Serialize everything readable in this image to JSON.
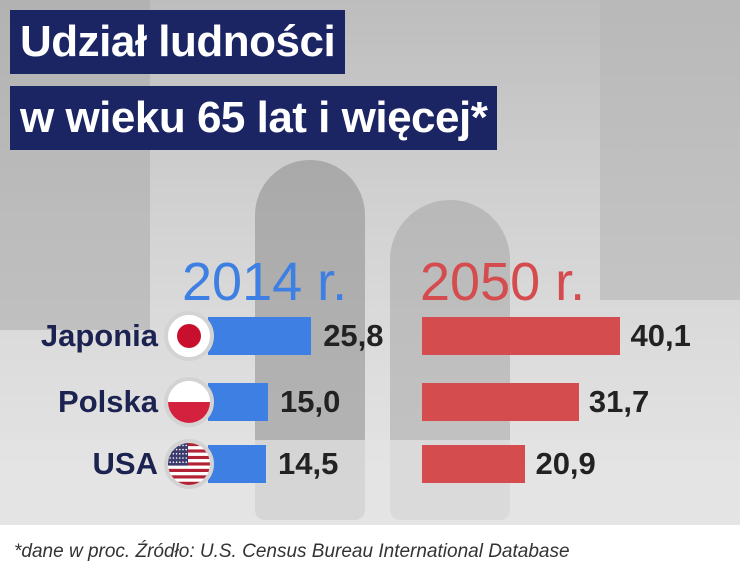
{
  "title": {
    "line1": "Udział ludności",
    "line2": "w wieku 65 lat i więcej*"
  },
  "footnote": "*dane w proc. Źródło: U.S. Census Bureau International Database",
  "colors": {
    "title_bg": "#1b2563",
    "series_2014": "#3d7fe3",
    "series_2050": "#d54c4f",
    "country_text": "#1c2350"
  },
  "chart_data": {
    "type": "bar",
    "orientation": "horizontal",
    "title": "Udział ludności w wieku 65 lat i więcej*",
    "categories": [
      "Japonia",
      "Polska",
      "USA"
    ],
    "category_icons": [
      "japan-flag-icon",
      "poland-flag-icon",
      "usa-flag-icon"
    ],
    "series": [
      {
        "name": "2014 r.",
        "values": [
          25.8,
          15.0,
          14.5
        ],
        "labels": [
          "25,8",
          "15,0",
          "14,5"
        ],
        "color": "#3d7fe3"
      },
      {
        "name": "2050 r.",
        "values": [
          40.1,
          31.7,
          20.9
        ],
        "labels": [
          "40,1",
          "31,7",
          "20,9"
        ],
        "color": "#d54c4f"
      }
    ],
    "xlabel": "",
    "ylabel": "",
    "grid": false,
    "legend": "above each panel"
  }
}
